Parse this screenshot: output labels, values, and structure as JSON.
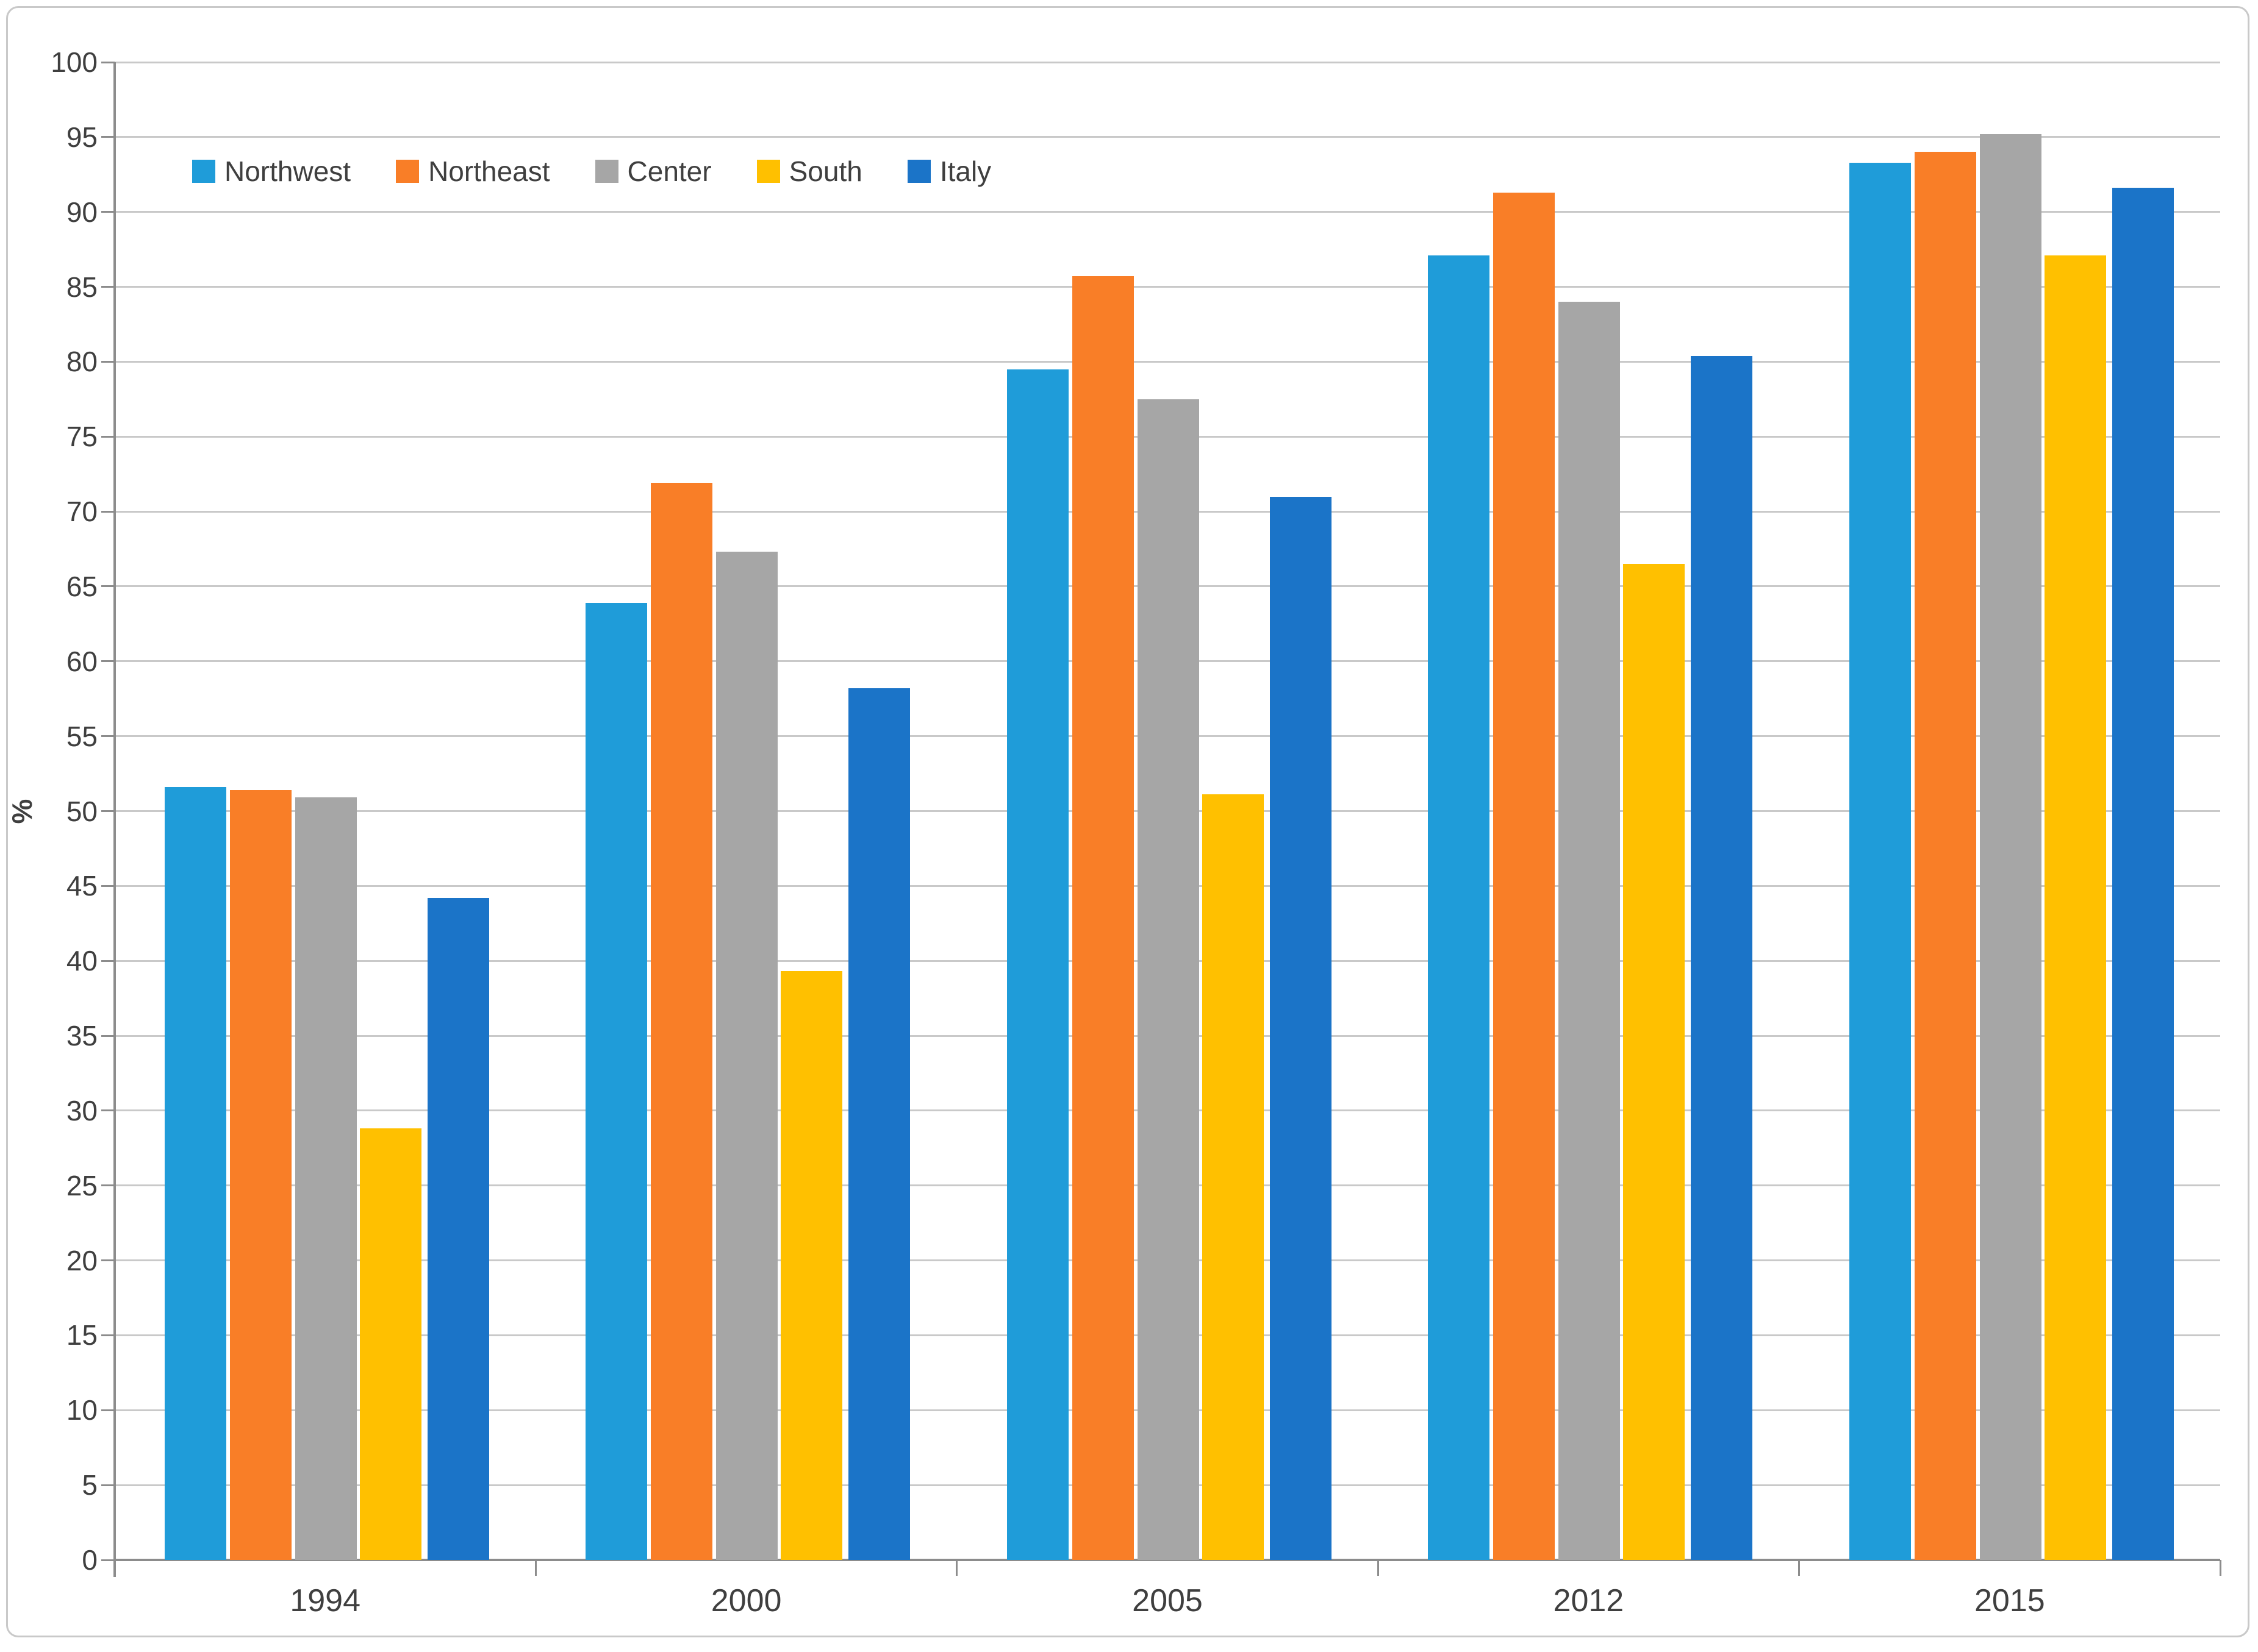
{
  "chart_data": {
    "type": "bar",
    "categories": [
      "1994",
      "2000",
      "2005",
      "2012",
      "2015"
    ],
    "series": [
      {
        "name": "Northwest",
        "color": "#1f9cd9",
        "values": [
          51.6,
          63.9,
          79.5,
          87.1,
          93.3
        ]
      },
      {
        "name": "Northeast",
        "color": "#f97e27",
        "values": [
          51.4,
          71.9,
          85.7,
          91.3,
          94.0
        ]
      },
      {
        "name": "Center",
        "color": "#a6a6a6",
        "values": [
          50.9,
          67.3,
          77.5,
          84.0,
          95.2
        ]
      },
      {
        "name": "South",
        "color": "#ffc000",
        "values": [
          28.8,
          39.3,
          51.1,
          66.5,
          87.1
        ]
      },
      {
        "name": "Italy",
        "color": "#1b74c8",
        "values": [
          44.2,
          58.2,
          71.0,
          80.4,
          91.6
        ]
      }
    ],
    "ylabel": "%",
    "ylim": [
      0,
      100
    ],
    "ytick_step": 5,
    "grid": true,
    "legend_position": "top-left-inside",
    "colors": {
      "gridline": "#c9c9c9",
      "axis": "#8c8c8c",
      "text": "#3f3f3f",
      "frame_border": "#c9c9c9",
      "background": "#ffffff"
    }
  }
}
